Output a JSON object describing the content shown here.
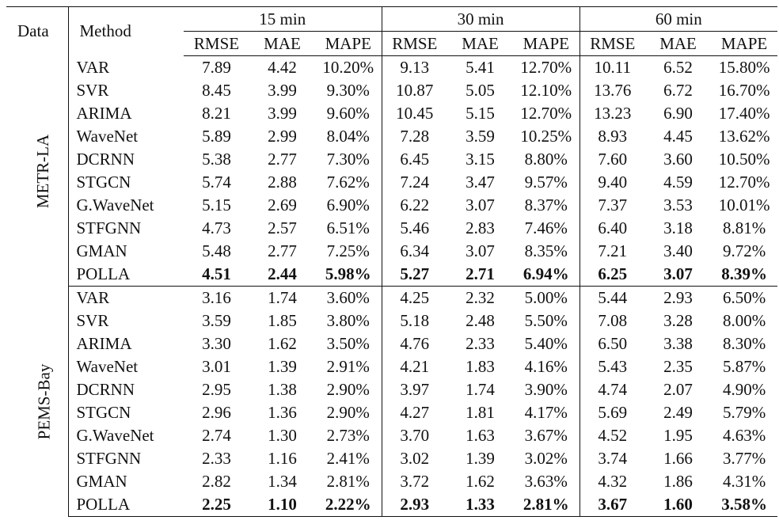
{
  "table": {
    "header": {
      "data": "Data",
      "method": "Method",
      "groups": [
        "15 min",
        "30 min",
        "60 min"
      ],
      "metrics": [
        "RMSE",
        "MAE",
        "MAPE",
        "RMSE",
        "MAE",
        "MAPE",
        "RMSE",
        "MAE",
        "MAPE"
      ]
    },
    "datasets": [
      {
        "name": "METR-LA",
        "rows": [
          {
            "method": "VAR",
            "values": [
              "7.89",
              "4.42",
              "10.20%",
              "9.13",
              "5.41",
              "12.70%",
              "10.11",
              "6.52",
              "15.80%"
            ]
          },
          {
            "method": "SVR",
            "values": [
              "8.45",
              "3.99",
              "9.30%",
              "10.87",
              "5.05",
              "12.10%",
              "13.76",
              "6.72",
              "16.70%"
            ]
          },
          {
            "method": "ARIMA",
            "values": [
              "8.21",
              "3.99",
              "9.60%",
              "10.45",
              "5.15",
              "12.70%",
              "13.23",
              "6.90",
              "17.40%"
            ]
          },
          {
            "method": "WaveNet",
            "values": [
              "5.89",
              "2.99",
              "8.04%",
              "7.28",
              "3.59",
              "10.25%",
              "8.93",
              "4.45",
              "13.62%"
            ]
          },
          {
            "method": "DCRNN",
            "values": [
              "5.38",
              "2.77",
              "7.30%",
              "6.45",
              "3.15",
              "8.80%",
              "7.60",
              "3.60",
              "10.50%"
            ]
          },
          {
            "method": "STGCN",
            "values": [
              "5.74",
              "2.88",
              "7.62%",
              "7.24",
              "3.47",
              "9.57%",
              "9.40",
              "4.59",
              "12.70%"
            ]
          },
          {
            "method": "G.WaveNet",
            "values": [
              "5.15",
              "2.69",
              "6.90%",
              "6.22",
              "3.07",
              "8.37%",
              "7.37",
              "3.53",
              "10.01%"
            ]
          },
          {
            "method": "STFGNN",
            "values": [
              "4.73",
              "2.57",
              "6.51%",
              "5.46",
              "2.83",
              "7.46%",
              "6.40",
              "3.18",
              "8.81%"
            ]
          },
          {
            "method": "GMAN",
            "values": [
              "5.48",
              "2.77",
              "7.25%",
              "6.34",
              "3.07",
              "8.35%",
              "7.21",
              "3.40",
              "9.72%"
            ]
          },
          {
            "method": "POLLA",
            "values": [
              "4.51",
              "2.44",
              "5.98%",
              "5.27",
              "2.71",
              "6.94%",
              "6.25",
              "3.07",
              "8.39%"
            ]
          }
        ]
      },
      {
        "name": "PEMS-Bay",
        "rows": [
          {
            "method": "VAR",
            "values": [
              "3.16",
              "1.74",
              "3.60%",
              "4.25",
              "2.32",
              "5.00%",
              "5.44",
              "2.93",
              "6.50%"
            ]
          },
          {
            "method": "SVR",
            "values": [
              "3.59",
              "1.85",
              "3.80%",
              "5.18",
              "2.48",
              "5.50%",
              "7.08",
              "3.28",
              "8.00%"
            ]
          },
          {
            "method": "ARIMA",
            "values": [
              "3.30",
              "1.62",
              "3.50%",
              "4.76",
              "2.33",
              "5.40%",
              "6.50",
              "3.38",
              "8.30%"
            ]
          },
          {
            "method": "WaveNet",
            "values": [
              "3.01",
              "1.39",
              "2.91%",
              "4.21",
              "1.83",
              "4.16%",
              "5.43",
              "2.35",
              "5.87%"
            ]
          },
          {
            "method": "DCRNN",
            "values": [
              "2.95",
              "1.38",
              "2.90%",
              "3.97",
              "1.74",
              "3.90%",
              "4.74",
              "2.07",
              "4.90%"
            ]
          },
          {
            "method": "STGCN",
            "values": [
              "2.96",
              "1.36",
              "2.90%",
              "4.27",
              "1.81",
              "4.17%",
              "5.69",
              "2.49",
              "5.79%"
            ]
          },
          {
            "method": "G.WaveNet",
            "values": [
              "2.74",
              "1.30",
              "2.73%",
              "3.70",
              "1.63",
              "3.67%",
              "4.52",
              "1.95",
              "4.63%"
            ]
          },
          {
            "method": "STFGNN",
            "values": [
              "2.33",
              "1.16",
              "2.41%",
              "3.02",
              "1.39",
              "3.02%",
              "3.74",
              "1.66",
              "3.77%"
            ]
          },
          {
            "method": "GMAN",
            "values": [
              "2.82",
              "1.34",
              "2.81%",
              "3.72",
              "1.62",
              "3.63%",
              "4.32",
              "1.86",
              "4.31%"
            ]
          },
          {
            "method": "POLLA",
            "values": [
              "2.25",
              "1.10",
              "2.22%",
              "2.93",
              "1.33",
              "2.81%",
              "3.67",
              "1.60",
              "3.58%"
            ]
          }
        ]
      }
    ]
  }
}
